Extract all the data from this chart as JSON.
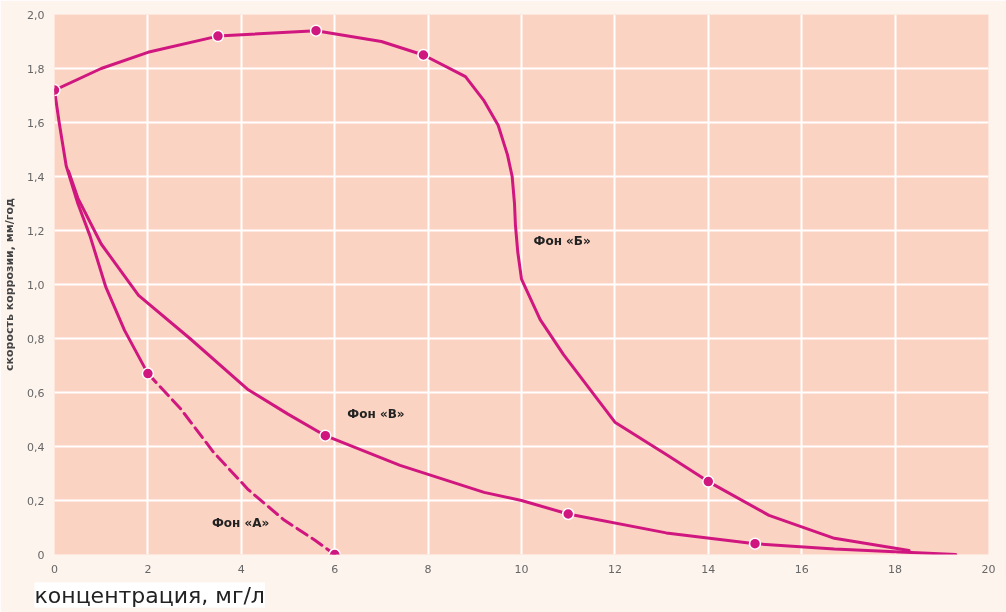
{
  "chart_data": {
    "type": "line",
    "xlabel": "концентрация, мг/л",
    "ylabel": "скорость коррозии, мм/год",
    "xlim": [
      0,
      20
    ],
    "ylim": [
      0,
      2
    ],
    "xticks": [
      0,
      2,
      4,
      6,
      8,
      10,
      12,
      14,
      16,
      18,
      20
    ],
    "yticks": [
      {
        "value": 0,
        "label": "0"
      },
      {
        "value": 0.2,
        "label": "0,2"
      },
      {
        "value": 0.4,
        "label": "0,4"
      },
      {
        "value": 0.6,
        "label": "0,6"
      },
      {
        "value": 0.8,
        "label": "0,8"
      },
      {
        "value": 1.0,
        "label": "1,0"
      },
      {
        "value": 1.2,
        "label": "1,2"
      },
      {
        "value": 1.4,
        "label": "1,4"
      },
      {
        "value": 1.6,
        "label": "1,6"
      },
      {
        "value": 1.8,
        "label": "1,8"
      },
      {
        "value": 2.0,
        "label": "2,0"
      }
    ],
    "grid": true,
    "line_style": "solid",
    "series": [
      {
        "color": "#d0177f",
        "x": [
          0,
          0.1,
          0.25,
          0.5,
          0.76,
          1.1,
          1.5,
          2
        ],
        "values": [
          1.72,
          1.6,
          1.44,
          1.3,
          1.18,
          0.99,
          0.83,
          0.67
        ]
      },
      {
        "name": "Фон «А»",
        "color": "#d0177f",
        "line_style": "dashed",
        "x": [
          2,
          2.7,
          3.4,
          4.15,
          4.9,
          5.6,
          6
        ],
        "values": [
          0.67,
          0.54,
          0.38,
          0.24,
          0.13,
          0.05,
          0
        ]
      },
      {
        "name": "Фон «Б»",
        "color": "#d0177f",
        "x": [
          0,
          1,
          2,
          3.5,
          5.6,
          7,
          7.9,
          8.8,
          9.2,
          9.5,
          9.7,
          9.8,
          9.85,
          9.87,
          9.92,
          10,
          10.4,
          10.9,
          12,
          13.1,
          14,
          15.3,
          16.7,
          18.3
        ],
        "values": [
          1.72,
          1.8,
          1.86,
          1.92,
          1.94,
          1.9,
          1.85,
          1.77,
          1.68,
          1.59,
          1.48,
          1.4,
          1.3,
          1.22,
          1.12,
          1.02,
          0.87,
          0.74,
          0.49,
          0.37,
          0.27,
          0.145,
          0.06,
          0.015
        ]
      },
      {
        "name": "Фон «В»",
        "color": "#d0177f",
        "x": [
          0.3,
          0.5,
          1,
          1.8,
          2.9,
          4.15,
          5,
          5.8,
          7.4,
          9.2,
          10,
          11,
          13.1,
          15,
          16.7,
          19.3
        ],
        "values": [
          1.42,
          1.32,
          1.15,
          0.96,
          0.8,
          0.61,
          0.52,
          0.44,
          0.33,
          0.23,
          0.2,
          0.15,
          0.08,
          0.04,
          0.02,
          0
        ]
      },
      {
        "type": "scatter",
        "color": "#d0177f",
        "marker": "circle",
        "x": [
          0,
          2,
          6,
          3.5,
          5.6,
          7.9,
          14,
          5.8,
          11,
          15
        ],
        "values": [
          1.72,
          0.67,
          0,
          1.92,
          1.94,
          1.85,
          0.27,
          0.44,
          0.15,
          0.04
        ]
      }
    ]
  }
}
